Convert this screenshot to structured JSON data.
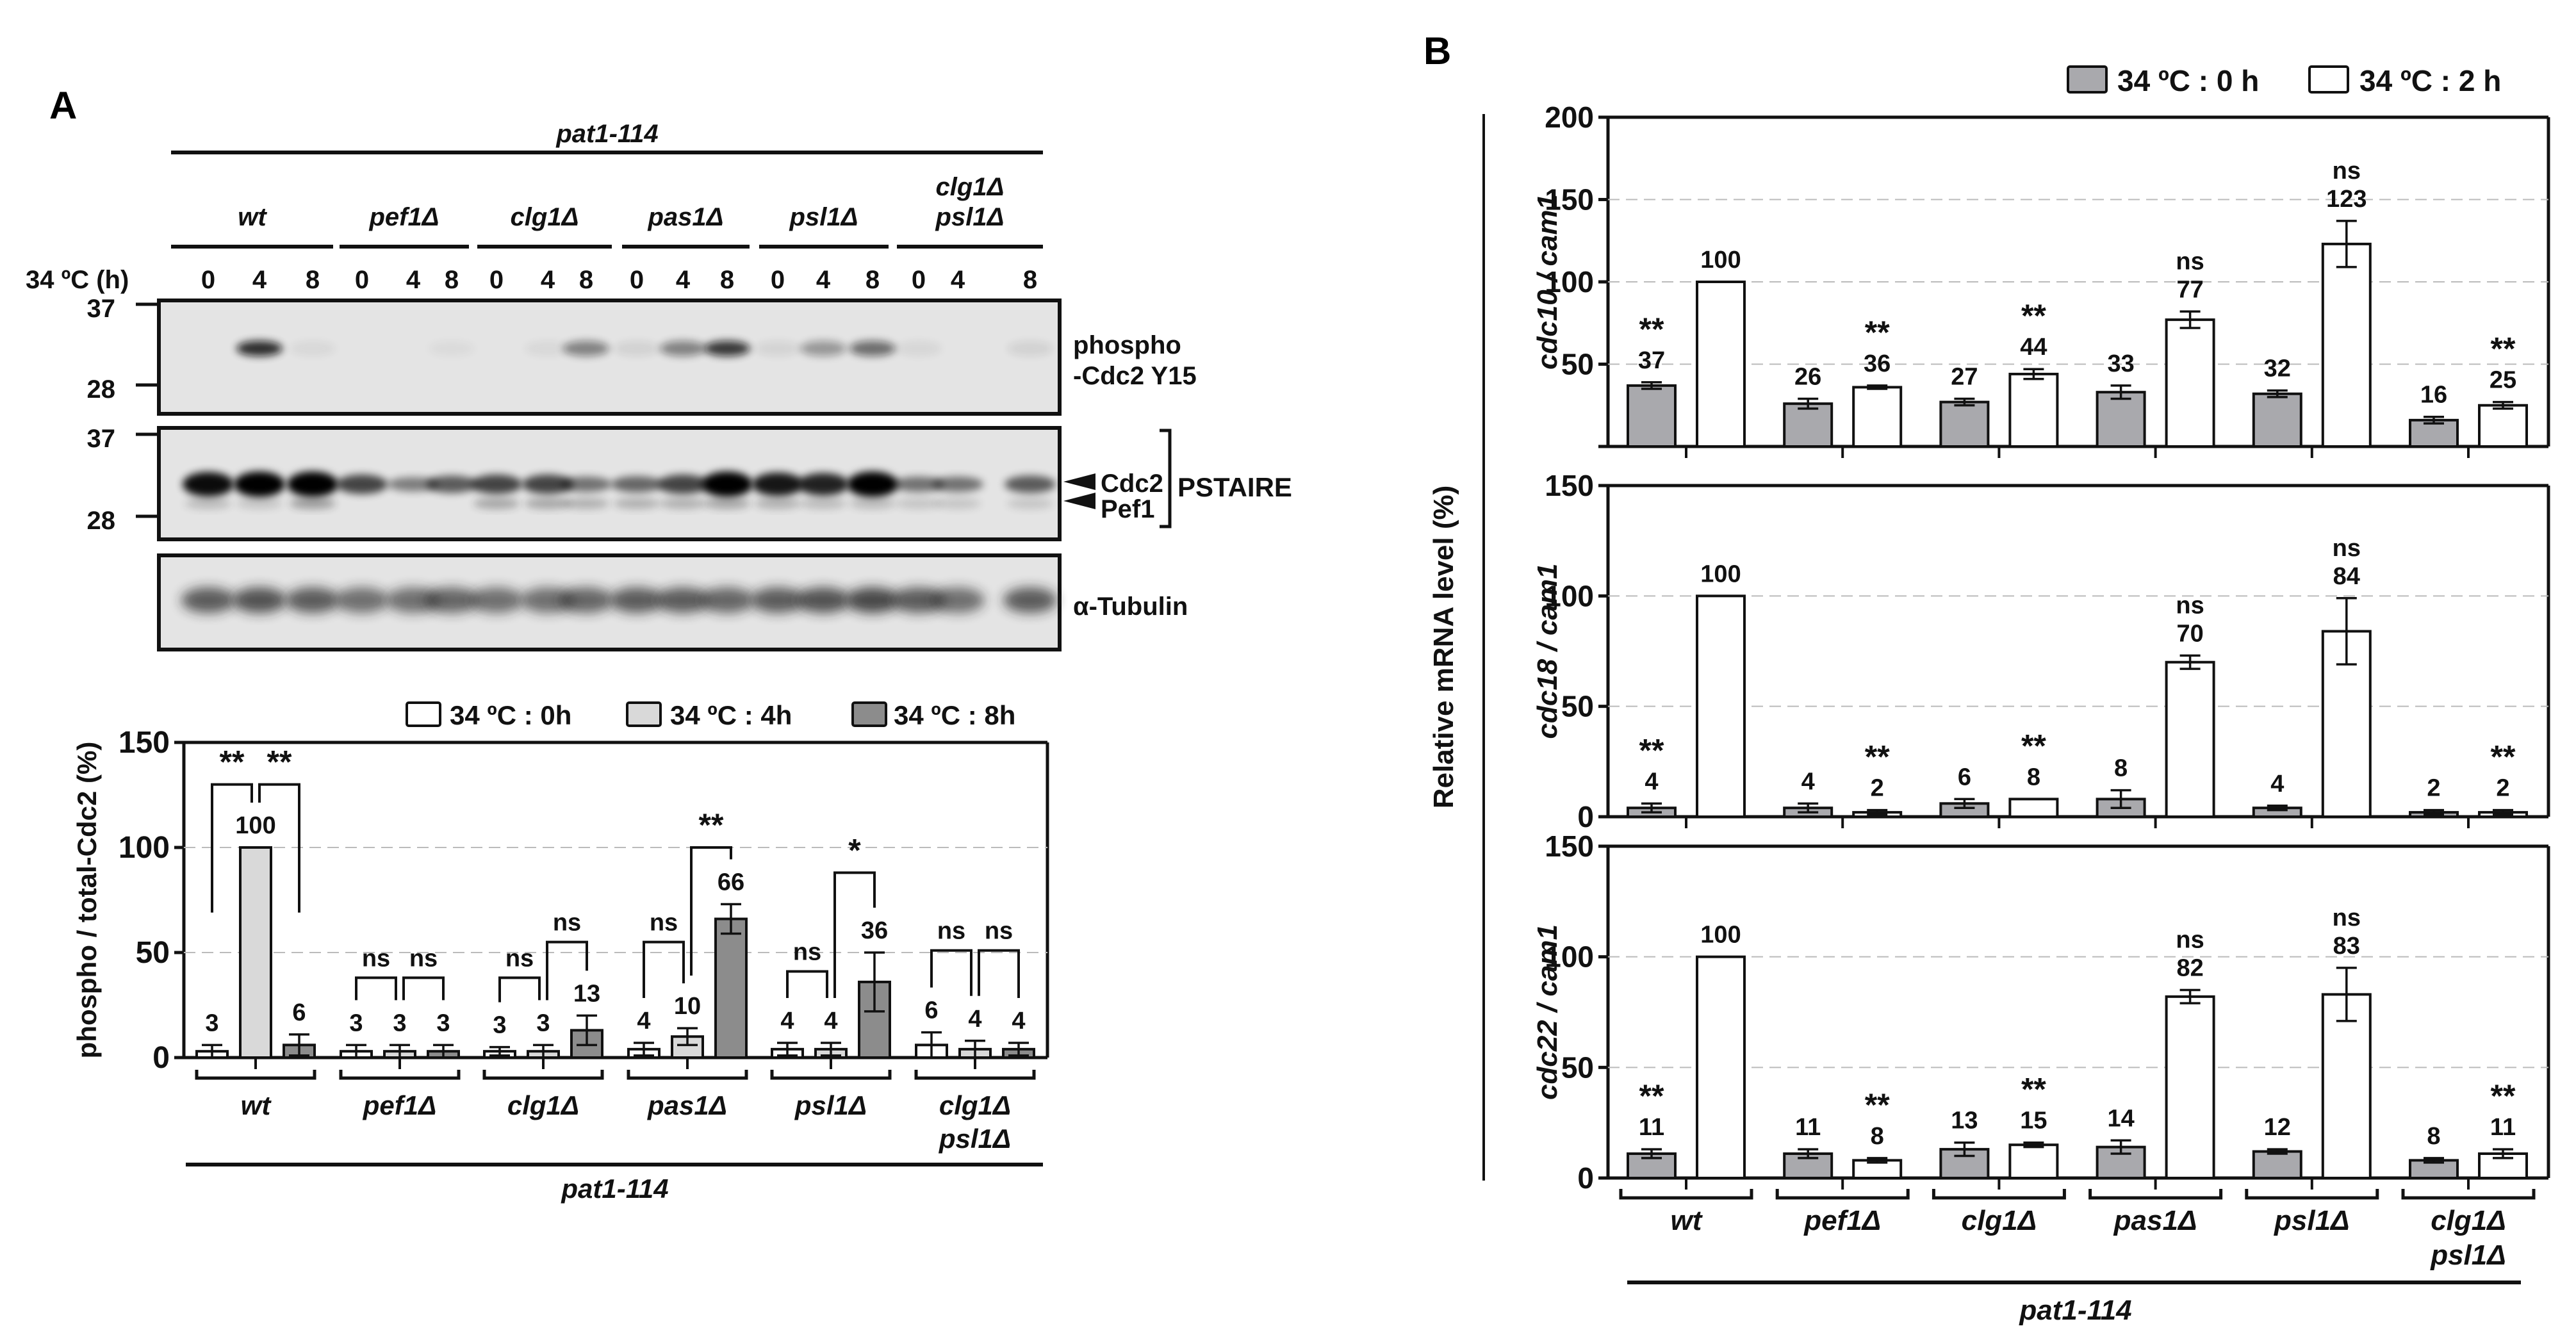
{
  "panel_a": {
    "letter": "A",
    "strain_header": "pat1-114",
    "time_label": "34 ºC (h)",
    "genotypes": [
      {
        "label": "wt",
        "label2": "",
        "line": [
          267,
          520
        ],
        "lanes": [
          {
            "t": "0",
            "x": 325
          },
          {
            "t": "4",
            "x": 405
          },
          {
            "t": "8",
            "x": 488
          }
        ]
      },
      {
        "label": "pef1Δ",
        "label2": "",
        "line": [
          530,
          732
        ],
        "lanes": [
          {
            "t": "0",
            "x": 565
          },
          {
            "t": "4",
            "x": 645
          },
          {
            "t": "8",
            "x": 705
          }
        ]
      },
      {
        "label": "clg1Δ",
        "label2": "",
        "line": [
          745,
          955
        ],
        "lanes": [
          {
            "t": "0",
            "x": 775
          },
          {
            "t": "4",
            "x": 855
          },
          {
            "t": "8",
            "x": 915
          }
        ]
      },
      {
        "label": "pas1Δ",
        "label2": "",
        "line": [
          971,
          1170
        ],
        "lanes": [
          {
            "t": "0",
            "x": 994
          },
          {
            "t": "4",
            "x": 1066
          },
          {
            "t": "8",
            "x": 1135
          }
        ]
      },
      {
        "label": "psl1Δ",
        "label2": "",
        "line": [
          1185,
          1387
        ],
        "lanes": [
          {
            "t": "0",
            "x": 1214
          },
          {
            "t": "4",
            "x": 1285
          },
          {
            "t": "8",
            "x": 1362
          }
        ]
      },
      {
        "label": "clg1Δ",
        "label2": "psl1Δ",
        "line": [
          1400,
          1628
        ],
        "lanes": [
          {
            "t": "0",
            "x": 1434
          },
          {
            "t": "4",
            "x": 1495
          },
          {
            "t": "8",
            "x": 1608
          }
        ]
      }
    ],
    "blots": [
      {
        "name": "phospho-cdc2-blot",
        "label_lines": [
          "phospho",
          "-Cdc2 Y15"
        ],
        "mw_markers": [
          {
            "kda": "37",
            "y": 475
          },
          {
            "kda": "28",
            "y": 601
          }
        ],
        "y": [
          469,
          646
        ]
      },
      {
        "name": "pstaire-blot",
        "label_lines": [],
        "mw_markers": [
          {
            "kda": "37",
            "y": 678
          },
          {
            "kda": "28",
            "y": 806
          }
        ],
        "y": [
          668,
          842
        ],
        "arrows": [
          "Cdc2",
          "Pef1"
        ],
        "bracket_label": "PSTAIRE"
      },
      {
        "name": "tubulin-blot",
        "label_lines": [
          "α-Tubulin"
        ],
        "mw_markers": [],
        "y": [
          867,
          1014
        ]
      }
    ],
    "legend": [
      {
        "label": "34 ºC : 0h",
        "color": "#ffffff"
      },
      {
        "label": "34 ºC : 4h",
        "color": "#d9d9d9"
      },
      {
        "label": "34 ºC : 8h",
        "color": "#8c8c8c"
      }
    ],
    "bottom_strain_label": "pat1-114"
  },
  "panel_b": {
    "letter": "B",
    "legend": [
      {
        "label": "34 ºC : 0 h",
        "color": "#a9a9ad"
      },
      {
        "label": "34 ºC : 2 h",
        "color": "#ffffff"
      }
    ],
    "ylabel": "Relative mRNA level (%)",
    "bottom_strain_label": "pat1-114"
  },
  "chart_data": [
    {
      "type": "bar",
      "title": "phospho / total-Cdc2",
      "xlabel": "pat1-114",
      "ylabel": "phospho / total-Cdc2 (%)",
      "ylim": [
        0,
        150
      ],
      "yticks": [
        0,
        50,
        100,
        150
      ],
      "grid": "dashed at 50, 100",
      "legend_position": "top-right",
      "categories": [
        "wt",
        "pef1Δ",
        "clg1Δ",
        "pas1Δ",
        "psl1Δ",
        "clg1Δ psl1Δ"
      ],
      "series": [
        {
          "name": "34 ºC : 0h",
          "color": "#ffffff",
          "values": [
            3,
            3,
            3,
            4,
            4,
            6
          ],
          "err": [
            3,
            3,
            2,
            3,
            3,
            6
          ]
        },
        {
          "name": "34 ºC : 4h",
          "color": "#d9d9d9",
          "values": [
            100,
            3,
            3,
            10,
            4,
            4
          ],
          "err": [
            0,
            3,
            3,
            4,
            3,
            4
          ]
        },
        {
          "name": "34 ºC : 8h",
          "color": "#8c8c8c",
          "values": [
            6,
            3,
            13,
            66,
            36,
            4
          ],
          "err": [
            5,
            3,
            7,
            7,
            14,
            3
          ]
        }
      ],
      "annotations": [
        {
          "group": 0,
          "from": 0,
          "to": 1,
          "label": "**",
          "y": 130
        },
        {
          "group": 0,
          "from": 1,
          "to": 2,
          "label": "**",
          "y": 130
        },
        {
          "group": 1,
          "from": 0,
          "to": 1,
          "label": "ns",
          "y": 38
        },
        {
          "group": 1,
          "from": 1,
          "to": 2,
          "label": "ns",
          "y": 38
        },
        {
          "group": 2,
          "from": 0,
          "to": 1,
          "label": "ns",
          "y": 38
        },
        {
          "group": 2,
          "from": 1,
          "to": 2,
          "label": "ns",
          "y": 55
        },
        {
          "group": 3,
          "from": 0,
          "to": 1,
          "label": "ns",
          "y": 55
        },
        {
          "group": 3,
          "from": 1,
          "to": 2,
          "label": "**",
          "y": 100
        },
        {
          "group": 4,
          "from": 0,
          "to": 1,
          "label": "ns",
          "y": 41
        },
        {
          "group": 4,
          "from": 1,
          "to": 2,
          "label": "*",
          "y": 88
        },
        {
          "group": 5,
          "from": 0,
          "to": 1,
          "label": "ns",
          "y": 51
        },
        {
          "group": 5,
          "from": 1,
          "to": 2,
          "label": "ns",
          "y": 51
        }
      ]
    },
    {
      "type": "bar",
      "ylabel": "cdc10 / cam1",
      "ylim": [
        0,
        200
      ],
      "yticks": [
        50,
        100,
        150,
        200
      ],
      "categories": [
        "wt",
        "pef1Δ",
        "clg1Δ",
        "pas1Δ",
        "psl1Δ",
        "clg1Δ psl1Δ"
      ],
      "series": [
        {
          "name": "34 ºC : 0 h",
          "color": "#a9a9ad",
          "values": [
            37,
            26,
            27,
            33,
            32,
            16
          ],
          "err": [
            2,
            3,
            2,
            4,
            2,
            2
          ],
          "sig": [
            "**",
            "",
            "",
            "",
            "",
            ""
          ]
        },
        {
          "name": "34 ºC : 2 h",
          "color": "#ffffff",
          "values": [
            100,
            36,
            44,
            77,
            123,
            25
          ],
          "err": [
            0,
            1,
            3,
            5,
            14,
            2
          ],
          "sig": [
            "",
            "**",
            "**",
            "ns",
            "ns",
            "**"
          ]
        }
      ]
    },
    {
      "type": "bar",
      "ylabel": "cdc18 / cam1",
      "ylim": [
        0,
        150
      ],
      "yticks": [
        0,
        50,
        100,
        150
      ],
      "categories": [
        "wt",
        "pef1Δ",
        "clg1Δ",
        "pas1Δ",
        "psl1Δ",
        "clg1Δ psl1Δ"
      ],
      "series": [
        {
          "name": "34 ºC : 0 h",
          "color": "#a9a9ad",
          "values": [
            4,
            4,
            6,
            8,
            4,
            2
          ],
          "err": [
            2,
            2,
            2,
            4,
            1,
            1
          ],
          "sig": [
            "**",
            "",
            "",
            "",
            "",
            ""
          ]
        },
        {
          "name": "34 ºC : 2 h",
          "color": "#ffffff",
          "values": [
            100,
            2,
            8,
            70,
            84,
            2
          ],
          "err": [
            0,
            1,
            0,
            3,
            15,
            1
          ],
          "sig": [
            "",
            "**",
            "**",
            "ns",
            "ns",
            "**"
          ]
        }
      ]
    },
    {
      "type": "bar",
      "ylabel": "cdc22 / cam1",
      "xlabel": "pat1-114",
      "ylim": [
        0,
        150
      ],
      "yticks": [
        0,
        50,
        100,
        150
      ],
      "categories": [
        "wt",
        "pef1Δ",
        "clg1Δ",
        "pas1Δ",
        "psl1Δ",
        "clg1Δ psl1Δ"
      ],
      "series": [
        {
          "name": "34 ºC : 0 h",
          "color": "#a9a9ad",
          "values": [
            11,
            11,
            13,
            14,
            12,
            8
          ],
          "err": [
            2,
            2,
            3,
            3,
            1,
            1
          ],
          "sig": [
            "**",
            "",
            "",
            "",
            "",
            ""
          ]
        },
        {
          "name": "34 ºC : 2 h",
          "color": "#ffffff",
          "values": [
            100,
            8,
            15,
            82,
            83,
            11
          ],
          "err": [
            0,
            1,
            1,
            3,
            12,
            2
          ],
          "sig": [
            "",
            "**",
            "**",
            "ns",
            "ns",
            "**"
          ]
        }
      ]
    }
  ]
}
